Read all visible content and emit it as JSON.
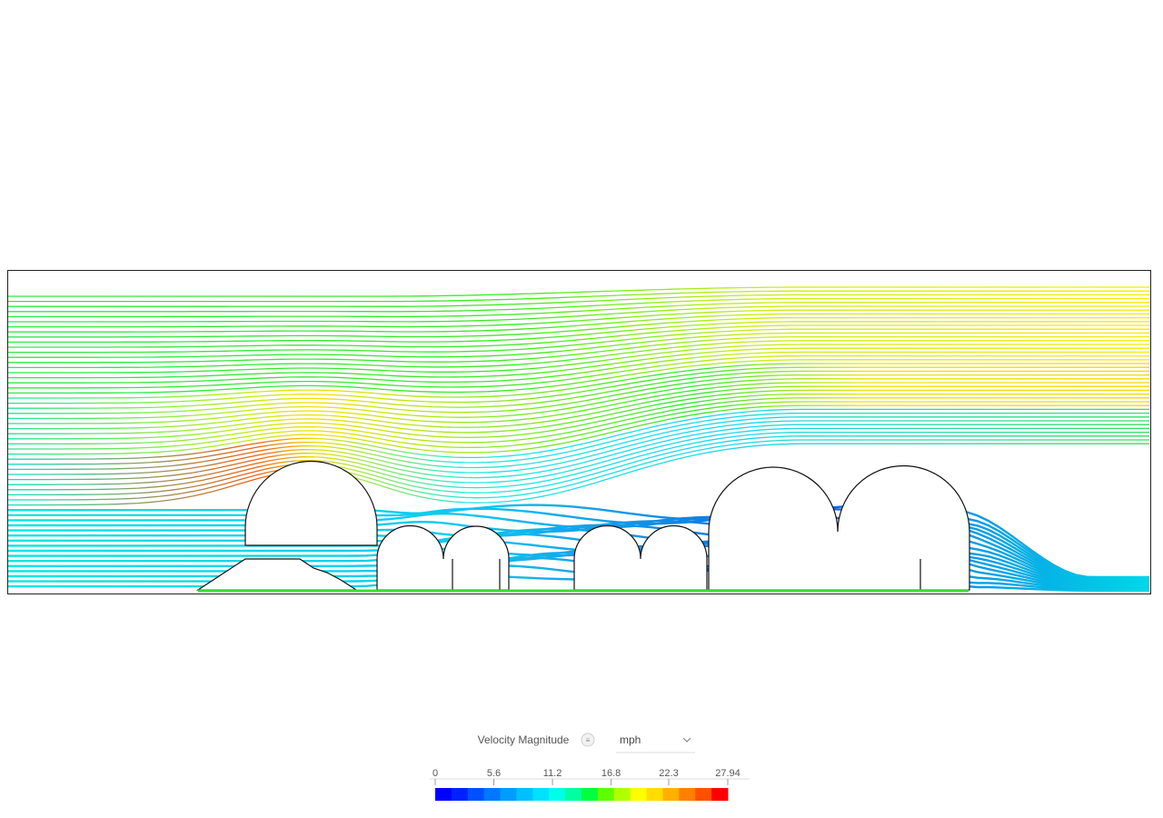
{
  "legend": {
    "title": "Velocity Magnitude",
    "unit": "mph",
    "range": [
      0,
      27.94
    ],
    "ticks": [
      0,
      5.6,
      11.2,
      16.8,
      22.3,
      27.94
    ],
    "colors": [
      "#0000ff",
      "#0022ff",
      "#0050ff",
      "#0078ff",
      "#009cff",
      "#00c0ff",
      "#00e0ff",
      "#00ffe8",
      "#00ffa0",
      "#00ff40",
      "#60ff00",
      "#b0ff00",
      "#ffff00",
      "#ffdd00",
      "#ffb000",
      "#ff8000",
      "#ff5000",
      "#ff0000"
    ]
  }
}
